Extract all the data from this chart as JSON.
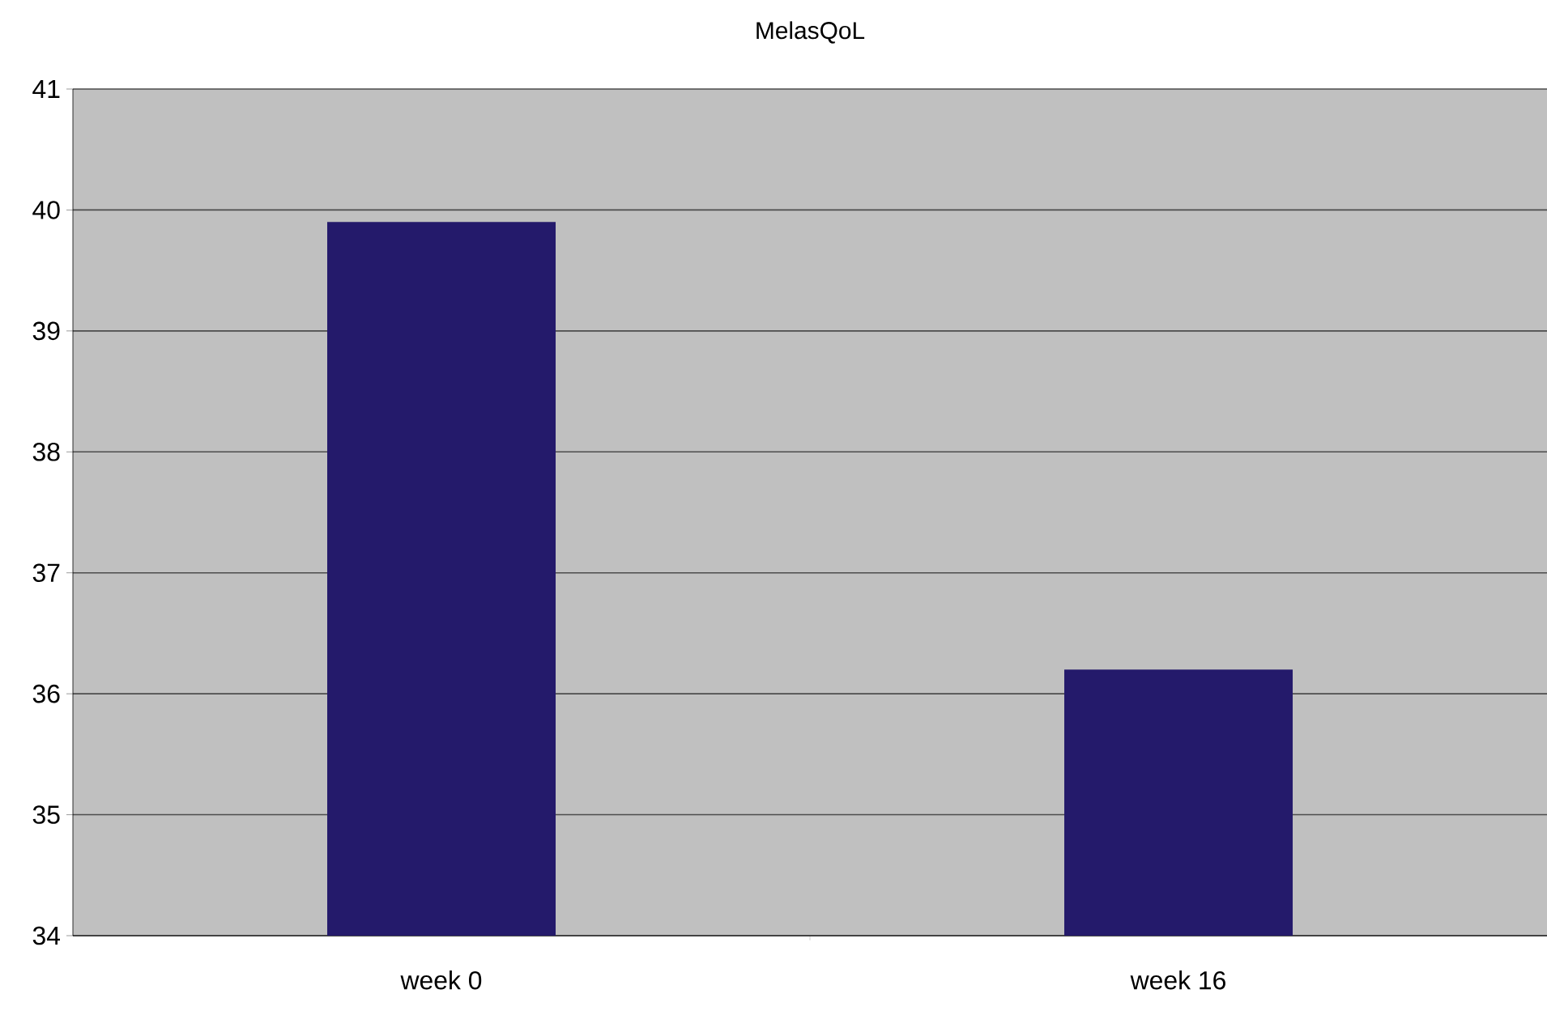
{
  "chart_data": {
    "type": "bar",
    "title": "MelasQoL",
    "categories": [
      "week 0",
      "week 16"
    ],
    "values": [
      39.9,
      36.2
    ],
    "color": "#241a6b",
    "ylim": [
      34,
      41
    ],
    "yticks": [
      34,
      35,
      36,
      37,
      38,
      39,
      40,
      41
    ],
    "grid": "y"
  }
}
